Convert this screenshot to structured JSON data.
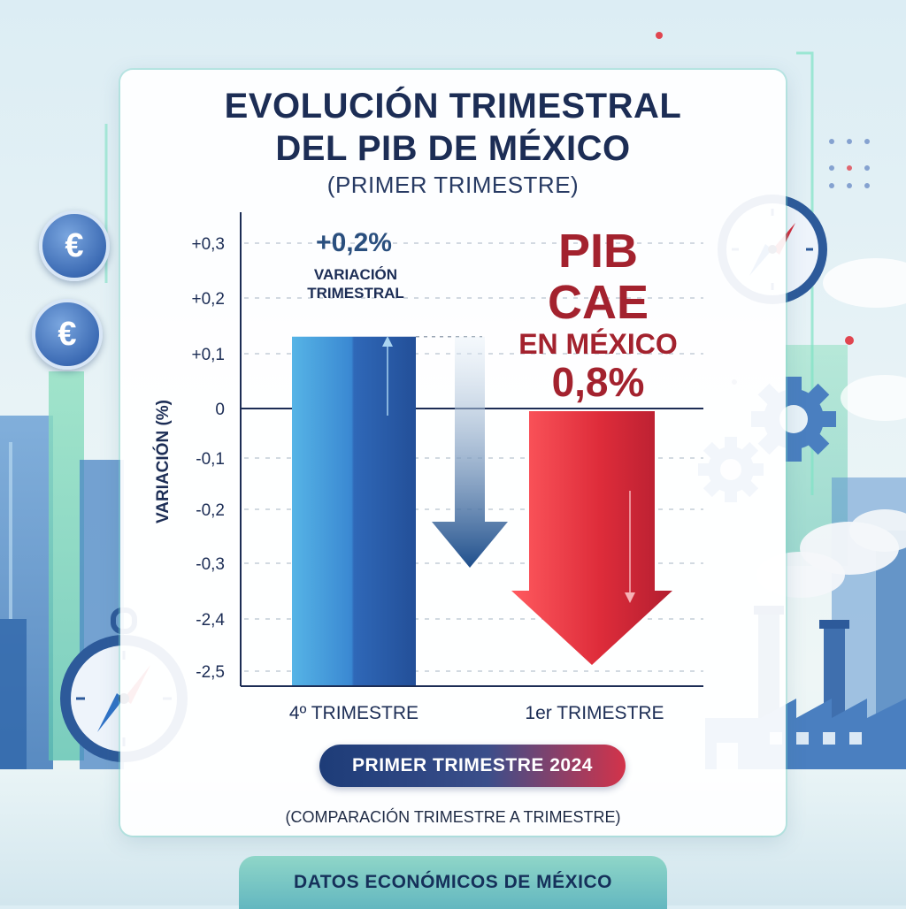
{
  "title_line1": "EVOLUCIÓN TRIMESTRAL",
  "title_line2": "DEL PIB DE MÉXICO",
  "subtitle": "(PRIMER TRIMESTRE)",
  "period_badge": "PRIMER TRIMESTRE 2024",
  "comparison_note": "(COMPARACIÓN TRIMESTRE A TRIMESTRE)",
  "footer": "DATOS ECONÓMICOS DE MÉXICO",
  "euro_symbol": "€",
  "icons": [
    "euro-coin-icon",
    "compass-icon",
    "gear-icon",
    "factory-icon",
    "city-skyline"
  ],
  "colors": {
    "navy": "#1c2d55",
    "blue": "#2f72c6",
    "red": "#d42a3a",
    "teal": "#63b7c0"
  },
  "chart_data": {
    "type": "bar",
    "ylabel": "VARIACIÓN (%)",
    "y_ticks": [
      "+0,3",
      "+0,2",
      "+0,1",
      "0",
      "-0,1",
      "-0,2",
      "-0,3",
      "-2,4",
      "-2,5"
    ],
    "categories": [
      "4º TRIMESTRE",
      "1er TRIMESTRE"
    ],
    "values": [
      0.2,
      -0.8
    ],
    "grid": true,
    "annotations": {
      "positive_value": "+0,2%",
      "positive_label_line1": "VARIACIÓN",
      "positive_label_line2": "TRIMESTRAL",
      "headline_line1": "PIB",
      "headline_line2": "CAE",
      "headline_line3": "EN MÉXICO",
      "headline_line4": "0,8%"
    }
  }
}
